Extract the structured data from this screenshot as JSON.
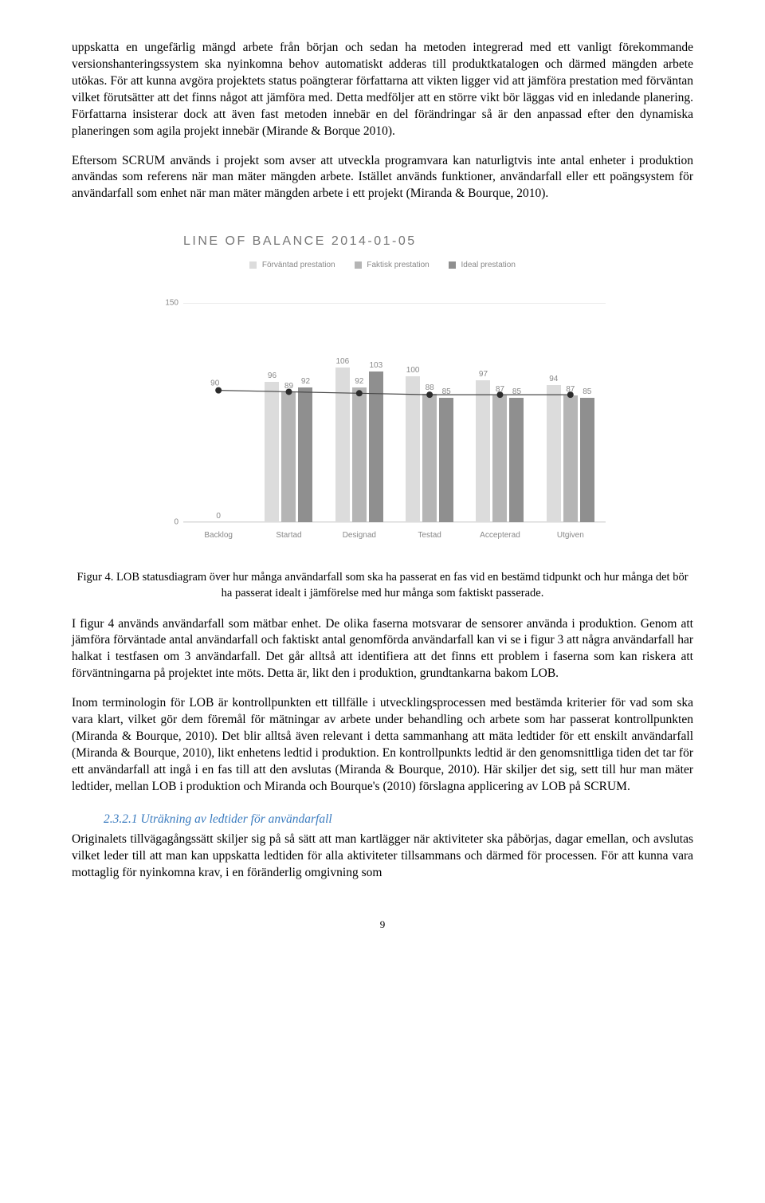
{
  "paragraphs": {
    "p1": "uppskatta en ungefärlig mängd arbete från början och sedan ha metoden integrerad med ett vanligt förekommande versionshanteringssystem ska nyinkomna behov automatiskt adderas till produktkatalogen och därmed mängden arbete utökas. För att kunna avgöra projektets status poängterar författarna att vikten ligger vid att jämföra prestation med förväntan vilket förutsätter att det finns något att jämföra med. Detta medföljer att en större vikt bör läggas vid en inledande planering. Författarna insisterar dock att även fast metoden innebär en del förändringar så är den anpassad efter den dynamiska planeringen som agila projekt innebär (Mirande & Borque 2010).",
    "p2": "Eftersom SCRUM används i projekt som avser att utveckla programvara kan naturligtvis inte antal enheter i produktion användas som referens när man mäter mängden arbete. Istället används funktioner, användarfall eller ett poängsystem för användarfall som enhet när man mäter mängden arbete i ett projekt (Miranda & Bourque, 2010).",
    "p3": "I figur 4 används användarfall som mätbar enhet. De olika faserna motsvarar de sensorer använda i produktion. Genom att jämföra förväntade antal användarfall och faktiskt antal genomförda användarfall kan vi se i figur 3 att några användarfall har halkat i testfasen om 3 användarfall. Det går alltså att identifiera att det finns ett problem i faserna som kan riskera att förväntningarna på projektet inte möts. Detta är, likt den i produktion, grundtankarna bakom LOB.",
    "p4": "Inom terminologin för LOB är kontrollpunkten ett tillfälle i utvecklingsprocessen med bestämda kriterier för vad som ska vara klart, vilket gör dem föremål för mätningar av arbete under behandling och arbete som har passerat kontrollpunkten (Miranda & Bourque, 2010). Det blir alltså även relevant i detta sammanhang att mäta ledtider för ett enskilt användarfall (Miranda & Bourque, 2010), likt enhetens ledtid i produktion. En kontrollpunkts ledtid är den genomsnittliga tiden det tar för ett användarfall att ingå i en fas till att den avslutas (Miranda & Bourque, 2010). Här skiljer det sig, sett till hur man mäter ledtider, mellan LOB i produktion och Miranda och Bourque's (2010) förslagna applicering av LOB på SCRUM.",
    "p5": "Originalets tillvägagångssätt skiljer sig på så sätt att man kartlägger när aktiviteter ska påbörjas, dagar emellan, och avslutas vilket leder till att man kan uppskatta ledtiden för alla aktiviteter tillsammans och därmed för processen. För att kunna vara mottaglig för nyinkomna krav, i en föränderlig omgivning som"
  },
  "chart": {
    "title": "LINE OF BALANCE 2014-01-05",
    "legend": {
      "s1": {
        "label": "Förväntad prestation",
        "color": "#dcdcdc"
      },
      "s2": {
        "label": "Faktisk prestation",
        "color": "#b5b5b5"
      },
      "s3": {
        "label": "Ideal prestation",
        "color": "#8f8f8f"
      }
    },
    "categories": [
      "Backlog",
      "Startad",
      "Designad",
      "Testad",
      "Accepterad",
      "Utgiven"
    ],
    "yticks": [
      0,
      150
    ],
    "ymax": 160,
    "series": {
      "forvantad": [
        null,
        96,
        106,
        100,
        97,
        94
      ],
      "faktisk": [
        null,
        89,
        92,
        88,
        87,
        87
      ],
      "ideal": [
        null,
        92,
        103,
        85,
        85,
        85
      ]
    },
    "markers": {
      "color": "#2b2b2b",
      "values_y": [
        90,
        89,
        88,
        87,
        87,
        87
      ]
    },
    "zero_label": "0",
    "line_label_first": "90",
    "colors": {
      "bg": "#ffffff",
      "grid": "#ececec",
      "axis": "#d9d9d9",
      "text": "#888888",
      "bar1": "#dcdcdc",
      "bar2": "#b5b5b5",
      "bar3": "#8f8f8f",
      "lineColor": "#4a4a4a"
    }
  },
  "caption": "Figur 4. LOB statusdiagram över hur många användarfall som ska ha passerat en fas vid en bestämd tidpunkt och hur många det bör ha passerat idealt i jämförelse med hur många som faktiskt passerade.",
  "subhead": "2.3.2.1  Uträkning av ledtider för användarfall",
  "pagenum": "9"
}
